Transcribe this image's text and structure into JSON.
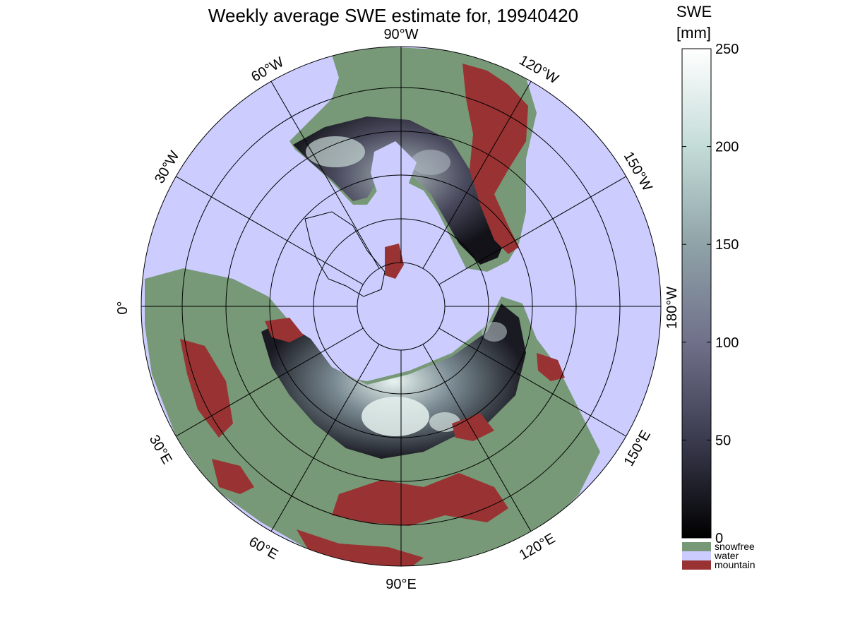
{
  "title": "Weekly average SWE estimate for, 19940420",
  "colorbar": {
    "label_line1": "SWE",
    "label_line2": "[mm]",
    "ticks": [
      {
        "value": 250,
        "label": "250"
      },
      {
        "value": 200,
        "label": "200"
      },
      {
        "value": 150,
        "label": "150"
      },
      {
        "value": 100,
        "label": "100"
      },
      {
        "value": 50,
        "label": "50"
      },
      {
        "value": 0,
        "label": "0"
      }
    ],
    "range": [
      0,
      250
    ],
    "colors": [
      "#000000",
      "#3b3b4f",
      "#70708a",
      "#8fa3a8",
      "#c4dcd8",
      "#ffffff"
    ]
  },
  "legend": [
    {
      "label": "snowfree",
      "color": "#779977"
    },
    {
      "label": "water",
      "color": "#ccccff"
    },
    {
      "label": "mountain",
      "color": "#993333"
    }
  ],
  "map": {
    "projection": "north-polar-stereographic",
    "water_color": "#ccccff",
    "snowfree_color": "#779977",
    "mountain_color": "#993333",
    "meridian_labels": {
      "top": "90°W",
      "bottom": "90°E",
      "left": "0°",
      "right": "180°W",
      "upper_left_1": "60°W",
      "upper_left_2": "30°W",
      "upper_right_1": "120°W",
      "upper_right_2": "150°W",
      "lower_left_1": "30°E",
      "lower_left_2": "60°E",
      "lower_right_1": "120°E",
      "lower_right_2": "150°E"
    }
  }
}
